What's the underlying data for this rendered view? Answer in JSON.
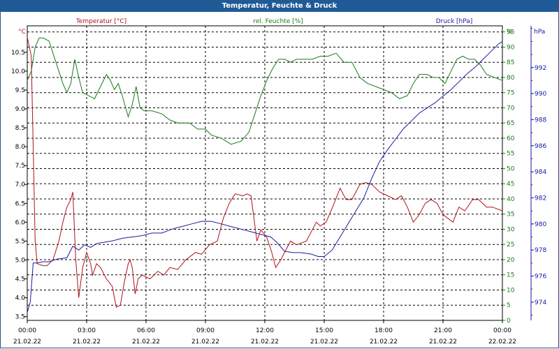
{
  "chart_data": {
    "type": "line",
    "title": "Temperatur, Feuchte & Druck",
    "x": {
      "labels": [
        {
          "time": "00:00",
          "date": "21.02.22"
        },
        {
          "time": "03:00",
          "date": "21.02.22"
        },
        {
          "time": "06:00",
          "date": "21.02.22"
        },
        {
          "time": "09:00",
          "date": "21.02.22"
        },
        {
          "time": "12:00",
          "date": "21.02.22"
        },
        {
          "time": "15:00",
          "date": "21.02.22"
        },
        {
          "time": "18:00",
          "date": "21.02.22"
        },
        {
          "time": "21:00",
          "date": "21.02.22"
        },
        {
          "time": "00:00",
          "date": "22.02.22"
        }
      ],
      "range_hours": [
        0,
        24
      ]
    },
    "axes": {
      "temperature": {
        "label": "Temperatur [°C]",
        "unit": "°C",
        "range": [
          3.4,
          11.2
        ],
        "ticks": [
          "3.5",
          "4.0",
          "4.5",
          "5.0",
          "5.5",
          "6.0",
          "6.5",
          "7.0",
          "7.5",
          "8.0",
          "8.5",
          "9.0",
          "9.5",
          "10.0",
          "10.5"
        ],
        "color": "#b0101a"
      },
      "humidity": {
        "label": "rel. Feuchte [%]",
        "unit": "%",
        "range": [
          0,
          97
        ],
        "ticks": [
          "0",
          "5",
          "10",
          "15",
          "20",
          "25",
          "30",
          "35",
          "40",
          "45",
          "50",
          "55",
          "60",
          "65",
          "70",
          "75",
          "80",
          "85",
          "90",
          "95"
        ],
        "color": "#1a7a1a"
      },
      "pressure": {
        "label": "Druck [hPa]",
        "unit": "hPa",
        "range": [
          972.6,
          995.2
        ],
        "ticks": [
          "974",
          "976",
          "978",
          "980",
          "982",
          "984",
          "986",
          "988",
          "990",
          "992"
        ],
        "color": "#1a1aa0"
      }
    },
    "grid": true,
    "series": [
      {
        "name": "Temperatur [°C]",
        "axis": "temperature",
        "color": "#b0101a",
        "points": [
          [
            0,
            10.9
          ],
          [
            0.2,
            10.4
          ],
          [
            0.3,
            8.0
          ],
          [
            0.4,
            5.5
          ],
          [
            0.5,
            4.9
          ],
          [
            0.8,
            4.85
          ],
          [
            1.0,
            4.85
          ],
          [
            1.3,
            5.0
          ],
          [
            1.6,
            5.5
          ],
          [
            1.8,
            6.0
          ],
          [
            2.0,
            6.4
          ],
          [
            2.2,
            6.6
          ],
          [
            2.3,
            6.8
          ],
          [
            2.45,
            5.0
          ],
          [
            2.6,
            4.0
          ],
          [
            2.8,
            4.8
          ],
          [
            3.0,
            5.2
          ],
          [
            3.2,
            4.9
          ],
          [
            3.3,
            4.6
          ],
          [
            3.5,
            4.9
          ],
          [
            3.7,
            4.8
          ],
          [
            4.0,
            4.5
          ],
          [
            4.3,
            4.3
          ],
          [
            4.4,
            4.0
          ],
          [
            4.5,
            3.75
          ],
          [
            4.7,
            3.8
          ],
          [
            4.9,
            4.4
          ],
          [
            5.1,
            4.9
          ],
          [
            5.2,
            5.0
          ],
          [
            5.3,
            4.8
          ],
          [
            5.45,
            4.1
          ],
          [
            5.6,
            4.5
          ],
          [
            5.8,
            4.6
          ],
          [
            6.2,
            4.5
          ],
          [
            6.6,
            4.7
          ],
          [
            6.9,
            4.6
          ],
          [
            7.2,
            4.8
          ],
          [
            7.6,
            4.75
          ],
          [
            8.0,
            5.0
          ],
          [
            8.5,
            5.2
          ],
          [
            8.8,
            5.15
          ],
          [
            9.2,
            5.4
          ],
          [
            9.6,
            5.5
          ],
          [
            9.9,
            6.1
          ],
          [
            10.2,
            6.5
          ],
          [
            10.5,
            6.75
          ],
          [
            10.9,
            6.7
          ],
          [
            11.1,
            6.75
          ],
          [
            11.3,
            6.7
          ],
          [
            11.6,
            5.5
          ],
          [
            11.8,
            5.8
          ],
          [
            12.1,
            5.6
          ],
          [
            12.35,
            5.2
          ],
          [
            12.55,
            4.8
          ],
          [
            12.8,
            5.0
          ],
          [
            13.0,
            5.2
          ],
          [
            13.3,
            5.5
          ],
          [
            13.6,
            5.4
          ],
          [
            14.1,
            5.5
          ],
          [
            14.4,
            5.8
          ],
          [
            14.6,
            6.0
          ],
          [
            14.8,
            5.9
          ],
          [
            15.1,
            6.0
          ],
          [
            15.5,
            6.5
          ],
          [
            15.8,
            6.9
          ],
          [
            16.1,
            6.6
          ],
          [
            16.4,
            6.6
          ],
          [
            16.8,
            7.0
          ],
          [
            17.1,
            7.05
          ],
          [
            17.4,
            7.0
          ],
          [
            17.8,
            6.8
          ],
          [
            18.2,
            6.7
          ],
          [
            18.6,
            6.6
          ],
          [
            18.9,
            6.7
          ],
          [
            19.2,
            6.4
          ],
          [
            19.5,
            6.0
          ],
          [
            19.8,
            6.2
          ],
          [
            20.1,
            6.5
          ],
          [
            20.4,
            6.6
          ],
          [
            20.7,
            6.5
          ],
          [
            21.0,
            6.2
          ],
          [
            21.5,
            6.0
          ],
          [
            21.8,
            6.4
          ],
          [
            22.1,
            6.3
          ],
          [
            22.5,
            6.6
          ],
          [
            22.8,
            6.6
          ],
          [
            23.2,
            6.4
          ],
          [
            23.5,
            6.4
          ],
          [
            24,
            6.3
          ]
        ]
      },
      {
        "name": "rel. Feuchte [%]",
        "axis": "humidity",
        "color": "#1a7a1a",
        "points": [
          [
            0,
            79
          ],
          [
            0.2,
            82
          ],
          [
            0.4,
            90
          ],
          [
            0.6,
            93
          ],
          [
            0.8,
            93
          ],
          [
            1.1,
            92
          ],
          [
            1.3,
            88
          ],
          [
            1.6,
            82
          ],
          [
            1.8,
            78
          ],
          [
            2.0,
            75
          ],
          [
            2.2,
            78
          ],
          [
            2.4,
            86
          ],
          [
            2.6,
            80
          ],
          [
            2.8,
            75
          ],
          [
            3.1,
            74
          ],
          [
            3.4,
            73
          ],
          [
            3.7,
            77
          ],
          [
            4.0,
            81
          ],
          [
            4.2,
            79
          ],
          [
            4.4,
            76
          ],
          [
            4.6,
            78
          ],
          [
            4.8,
            74
          ],
          [
            5.1,
            67
          ],
          [
            5.3,
            71
          ],
          [
            5.5,
            77
          ],
          [
            5.7,
            70
          ],
          [
            5.9,
            69
          ],
          [
            6.3,
            69
          ],
          [
            6.8,
            68
          ],
          [
            7.2,
            66
          ],
          [
            7.6,
            65
          ],
          [
            8.2,
            65
          ],
          [
            8.6,
            63
          ],
          [
            9.0,
            63
          ],
          [
            9.3,
            61
          ],
          [
            9.8,
            60
          ],
          [
            10.3,
            58
          ],
          [
            10.8,
            59
          ],
          [
            11.2,
            62
          ],
          [
            11.5,
            68
          ],
          [
            11.8,
            74
          ],
          [
            12.1,
            79
          ],
          [
            12.4,
            83
          ],
          [
            12.7,
            86
          ],
          [
            13.0,
            86
          ],
          [
            13.3,
            85
          ],
          [
            13.6,
            86
          ],
          [
            14.0,
            86
          ],
          [
            14.4,
            86
          ],
          [
            14.8,
            87
          ],
          [
            15.2,
            87
          ],
          [
            15.6,
            88
          ],
          [
            16.0,
            85
          ],
          [
            16.4,
            85
          ],
          [
            16.8,
            80
          ],
          [
            17.2,
            78
          ],
          [
            17.6,
            77
          ],
          [
            18.0,
            76
          ],
          [
            18.4,
            75
          ],
          [
            18.8,
            73
          ],
          [
            19.2,
            74
          ],
          [
            19.5,
            78
          ],
          [
            19.8,
            81
          ],
          [
            20.2,
            81
          ],
          [
            20.5,
            80
          ],
          [
            20.8,
            80
          ],
          [
            21.1,
            78
          ],
          [
            21.4,
            82
          ],
          [
            21.7,
            86
          ],
          [
            22.0,
            87
          ],
          [
            22.3,
            86
          ],
          [
            22.6,
            86
          ],
          [
            22.9,
            84
          ],
          [
            23.2,
            81
          ],
          [
            23.6,
            80
          ],
          [
            24,
            79
          ]
        ]
      },
      {
        "name": "Druck [hPa]",
        "axis": "pressure",
        "color": "#1a1aa0",
        "points": [
          [
            0,
            973.2
          ],
          [
            0.15,
            974.0
          ],
          [
            0.3,
            977.0
          ],
          [
            0.5,
            977.0
          ],
          [
            0.8,
            977.1
          ],
          [
            1.1,
            977.1
          ],
          [
            1.5,
            977.3
          ],
          [
            2.0,
            977.4
          ],
          [
            2.3,
            978.3
          ],
          [
            2.6,
            978.0
          ],
          [
            2.9,
            978.4
          ],
          [
            3.2,
            978.2
          ],
          [
            3.5,
            978.5
          ],
          [
            3.9,
            978.6
          ],
          [
            4.3,
            978.7
          ],
          [
            4.8,
            978.9
          ],
          [
            5.3,
            979.0
          ],
          [
            5.8,
            979.1
          ],
          [
            6.3,
            979.3
          ],
          [
            6.8,
            979.3
          ],
          [
            7.3,
            979.6
          ],
          [
            7.8,
            979.8
          ],
          [
            8.3,
            980.0
          ],
          [
            8.8,
            980.2
          ],
          [
            9.3,
            980.2
          ],
          [
            9.8,
            980.0
          ],
          [
            10.3,
            979.8
          ],
          [
            10.8,
            979.6
          ],
          [
            11.3,
            979.4
          ],
          [
            11.8,
            979.2
          ],
          [
            12.3,
            979.0
          ],
          [
            12.6,
            978.6
          ],
          [
            13.0,
            977.9
          ],
          [
            13.4,
            977.8
          ],
          [
            13.8,
            977.8
          ],
          [
            14.3,
            977.7
          ],
          [
            14.7,
            977.5
          ],
          [
            15.0,
            977.5
          ],
          [
            15.4,
            978.0
          ],
          [
            15.8,
            979.0
          ],
          [
            16.2,
            980.0
          ],
          [
            16.6,
            981.0
          ],
          [
            17.0,
            982.0
          ],
          [
            17.4,
            983.5
          ],
          [
            17.8,
            984.8
          ],
          [
            18.2,
            985.7
          ],
          [
            18.6,
            986.5
          ],
          [
            19.0,
            987.3
          ],
          [
            19.4,
            987.9
          ],
          [
            19.8,
            988.5
          ],
          [
            20.2,
            988.9
          ],
          [
            20.6,
            989.3
          ],
          [
            21.0,
            989.8
          ],
          [
            21.4,
            990.3
          ],
          [
            21.8,
            990.9
          ],
          [
            22.2,
            991.5
          ],
          [
            22.6,
            992.0
          ],
          [
            23.0,
            992.6
          ],
          [
            23.4,
            993.2
          ],
          [
            23.8,
            993.8
          ],
          [
            24,
            994.0
          ]
        ]
      }
    ]
  }
}
